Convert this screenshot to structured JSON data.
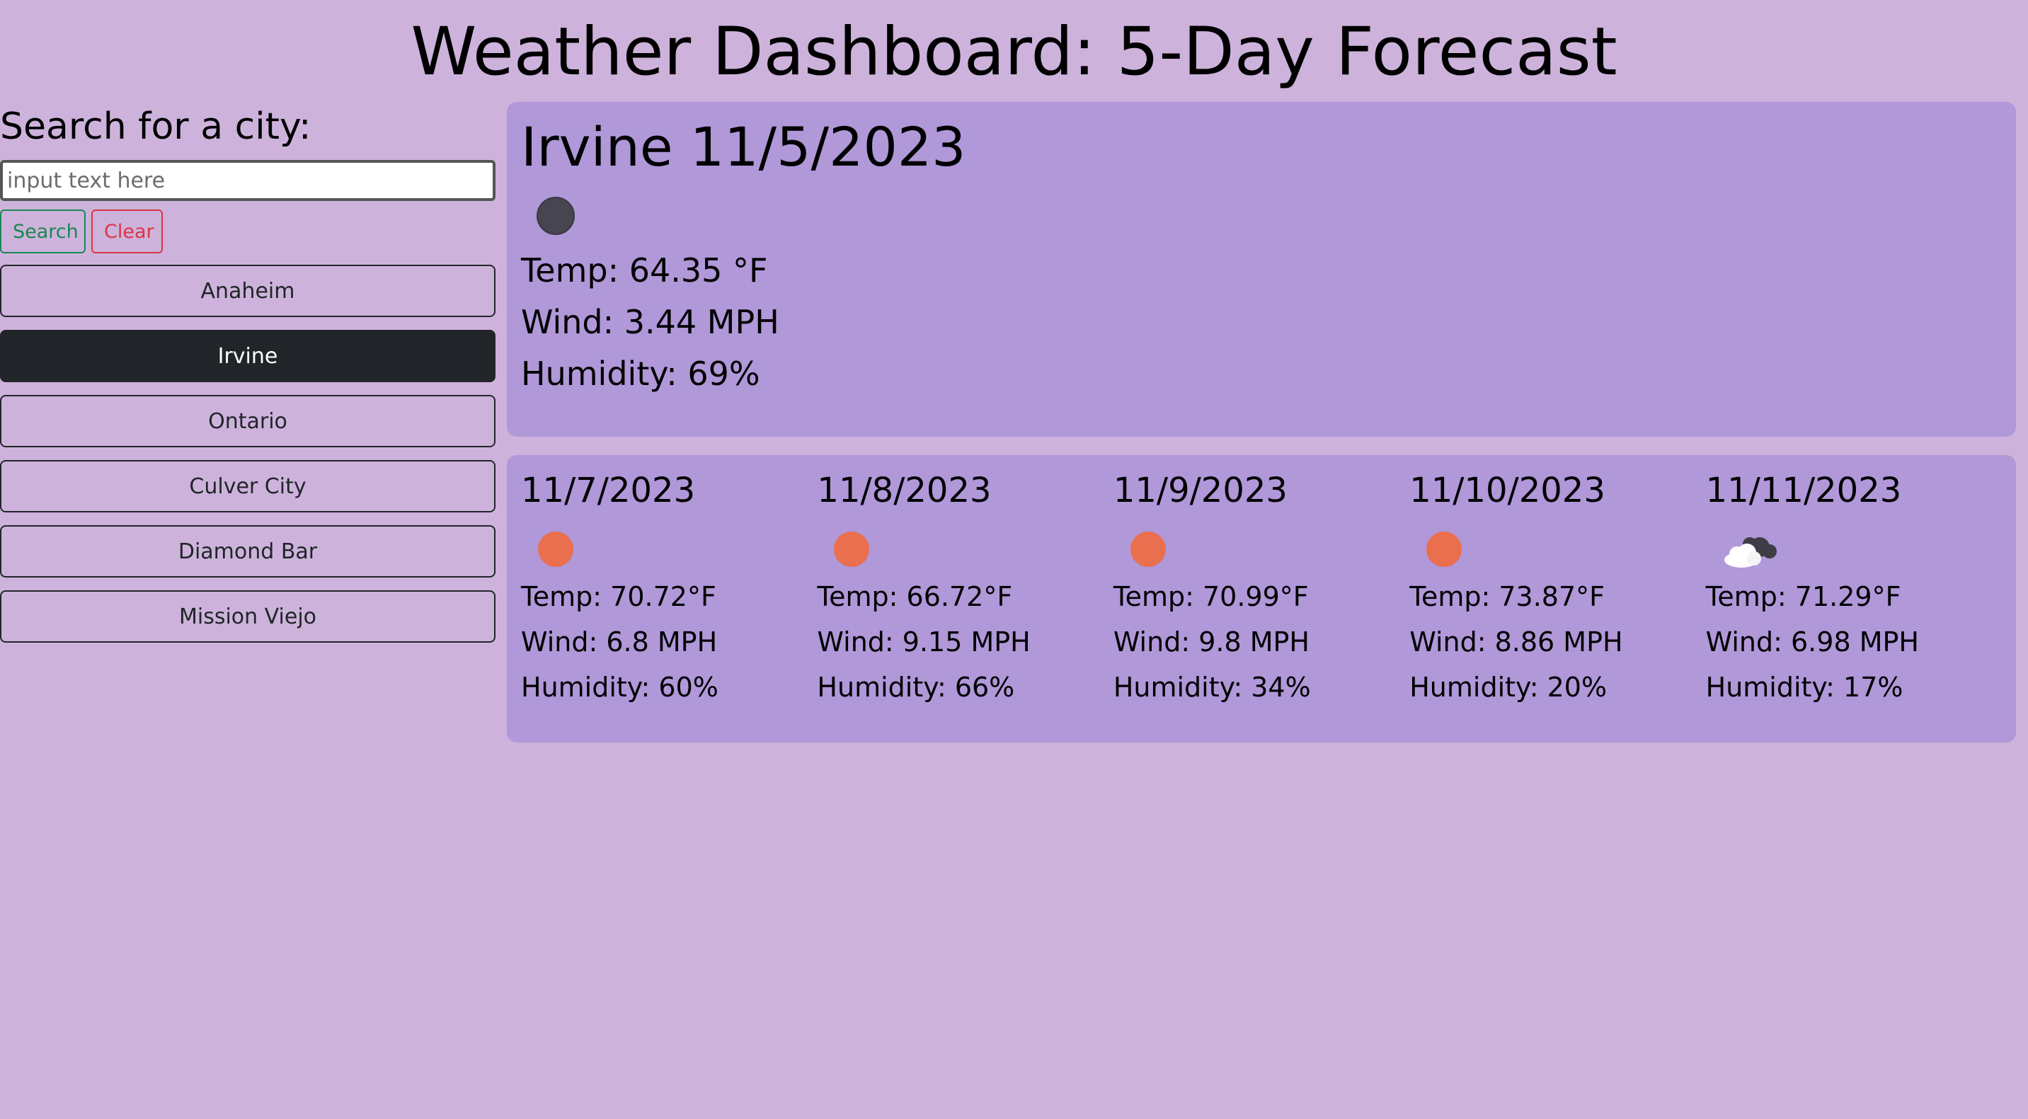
{
  "header": {
    "title": "Weather Dashboard: 5-Day Forecast"
  },
  "sidebar": {
    "heading": "Search for a city:",
    "input_value": "",
    "input_placeholder": "input text here",
    "search_label": "Search",
    "clear_label": "Clear",
    "history": [
      "Anaheim",
      "Irvine",
      "Ontario",
      "Culver City",
      "Diamond Bar",
      "Mission Viejo"
    ],
    "active_city": "Irvine"
  },
  "current": {
    "title": "Irvine 11/5/2023",
    "icon": "moon-icon",
    "temp": "Temp: 64.35 °F",
    "wind": "Wind: 3.44 MPH",
    "humidity": "Humidity: 69%"
  },
  "forecast": [
    {
      "date": "11/7/2023",
      "icon": "sun-icon",
      "temp": "Temp: 70.72°F",
      "wind": "Wind: 6.8 MPH",
      "humidity": "Humidity: 60%"
    },
    {
      "date": "11/8/2023",
      "icon": "sun-icon",
      "temp": "Temp: 66.72°F",
      "wind": "Wind: 9.15 MPH",
      "humidity": "Humidity: 66%"
    },
    {
      "date": "11/9/2023",
      "icon": "sun-icon",
      "temp": "Temp: 70.99°F",
      "wind": "Wind: 9.8 MPH",
      "humidity": "Humidity: 34%"
    },
    {
      "date": "11/10/2023",
      "icon": "sun-icon",
      "temp": "Temp: 73.87°F",
      "wind": "Wind: 8.86 MPH",
      "humidity": "Humidity: 20%"
    },
    {
      "date": "11/11/2023",
      "icon": "cloud-icon",
      "temp": "Temp: 71.29°F",
      "wind": "Wind: 6.98 MPH",
      "humidity": "Humidity: 17%"
    }
  ],
  "colors": {
    "background": "#cdb3db",
    "card": "#b098d9",
    "sun": "#ea6f4f",
    "moon": "#47454f",
    "search_accent": "#198754",
    "clear_accent": "#dc3545",
    "active_button": "#212529"
  }
}
